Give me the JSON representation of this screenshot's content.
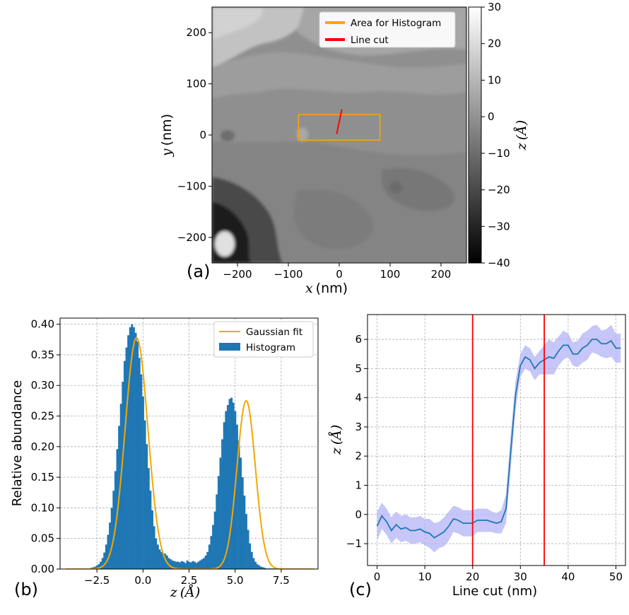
{
  "panels": {
    "a": {
      "letter": "(a)"
    },
    "b": {
      "letter": "(b)"
    },
    "c": {
      "letter": "(c)"
    }
  },
  "chart_data": [
    {
      "id": "a",
      "type": "heatmap",
      "title": "",
      "xlabel_var": "x",
      "xlabel_unit": "(nm)",
      "ylabel_var": "y",
      "ylabel_unit": "(nm)",
      "xlim": [
        -250,
        250
      ],
      "ylim": [
        -250,
        250
      ],
      "xticks": [
        -200,
        -100,
        0,
        100,
        200
      ],
      "yticks": [
        -200,
        -100,
        0,
        100,
        200
      ],
      "xtick_labels": [
        "−200",
        "−100",
        "0",
        "100",
        "200"
      ],
      "ytick_labels": [
        "−200",
        "−100",
        "0",
        "100",
        "200"
      ],
      "colorbar": {
        "label_var": "z",
        "label_unit": "(Å)",
        "range": [
          -40,
          30
        ],
        "ticks": [
          -40,
          -30,
          -20,
          -10,
          0,
          10,
          20,
          30
        ],
        "tick_labels": [
          "−40",
          "−30",
          "−20",
          "−10",
          "0",
          "10",
          "20",
          "30"
        ],
        "colormap": "gray"
      },
      "histogram_area": {
        "x": [
          -80,
          80
        ],
        "y": [
          -10,
          40
        ]
      },
      "line_cut": {
        "x": [
          -5,
          5
        ],
        "y": [
          2,
          50
        ]
      },
      "legend": {
        "position": "upper-right",
        "items": [
          {
            "label": "Area for Histogram",
            "color": "#ffa500"
          },
          {
            "label": "Line cut",
            "color": "#ff0000"
          }
        ]
      }
    },
    {
      "id": "b",
      "type": "bar",
      "title": "",
      "xlabel_var": "z",
      "xlabel_unit": "(Å)",
      "ylabel": "Relative abundance",
      "xlim": [
        -4.5,
        9.5
      ],
      "ylim": [
        0,
        0.41
      ],
      "xticks": [
        -2.5,
        0,
        2.5,
        5,
        7.5
      ],
      "xtick_labels": [
        "−2.5",
        "0.0",
        "2.5",
        "5.0",
        "7.5"
      ],
      "yticks": [
        0,
        0.05,
        0.1,
        0.15,
        0.2,
        0.25,
        0.3,
        0.35,
        0.4
      ],
      "ytick_labels": [
        "0.00",
        "0.05",
        "0.10",
        "0.15",
        "0.20",
        "0.25",
        "0.30",
        "0.35",
        "0.40"
      ],
      "grid": true,
      "legend": {
        "position": "upper-right",
        "items": [
          {
            "label": "Gaussian fit",
            "color": "#f5a700",
            "kind": "line"
          },
          {
            "label": "Histogram",
            "color": "#1f77b4",
            "kind": "patch"
          }
        ]
      },
      "histogram": {
        "bin_width": 0.1,
        "x": [
          -2.8,
          -2.7,
          -2.6,
          -2.5,
          -2.4,
          -2.3,
          -2.2,
          -2.1,
          -2.0,
          -1.9,
          -1.8,
          -1.7,
          -1.6,
          -1.5,
          -1.4,
          -1.3,
          -1.2,
          -1.1,
          -1.0,
          -0.9,
          -0.8,
          -0.7,
          -0.6,
          -0.5,
          -0.4,
          -0.3,
          -0.2,
          -0.1,
          0.0,
          0.1,
          0.2,
          0.3,
          0.4,
          0.5,
          0.6,
          0.7,
          0.8,
          0.9,
          1.0,
          1.1,
          1.2,
          1.3,
          1.4,
          1.5,
          1.6,
          1.7,
          1.8,
          1.9,
          2.0,
          2.1,
          2.2,
          2.3,
          2.4,
          2.5,
          2.6,
          2.7,
          2.8,
          2.9,
          3.0,
          3.1,
          3.2,
          3.3,
          3.4,
          3.5,
          3.6,
          3.7,
          3.8,
          3.9,
          4.0,
          4.1,
          4.2,
          4.3,
          4.4,
          4.5,
          4.6,
          4.7,
          4.8,
          4.9,
          5.0,
          5.1,
          5.2,
          5.3,
          5.4,
          5.5,
          5.6,
          5.7,
          5.8,
          5.9,
          6.0,
          6.1,
          6.2,
          6.3,
          6.4,
          6.5,
          6.6,
          6.7,
          6.8,
          6.9,
          7.0,
          7.1,
          7.2,
          7.3,
          7.4,
          7.5,
          7.6,
          7.7,
          7.8
        ],
        "values": [
          0.002,
          0.003,
          0.004,
          0.006,
          0.008,
          0.012,
          0.018,
          0.027,
          0.04,
          0.056,
          0.076,
          0.1,
          0.128,
          0.16,
          0.196,
          0.234,
          0.27,
          0.306,
          0.34,
          0.362,
          0.382,
          0.395,
          0.4,
          0.395,
          0.386,
          0.372,
          0.345,
          0.318,
          0.282,
          0.243,
          0.204,
          0.165,
          0.128,
          0.096,
          0.07,
          0.05,
          0.04,
          0.032,
          0.028,
          0.026,
          0.025,
          0.022,
          0.018,
          0.016,
          0.014,
          0.013,
          0.012,
          0.012,
          0.011,
          0.013,
          0.012,
          0.01,
          0.014,
          0.012,
          0.011,
          0.013,
          0.012,
          0.01,
          0.012,
          0.014,
          0.016,
          0.018,
          0.022,
          0.028,
          0.04,
          0.054,
          0.072,
          0.094,
          0.122,
          0.152,
          0.182,
          0.212,
          0.24,
          0.258,
          0.268,
          0.278,
          0.28,
          0.272,
          0.258,
          0.236,
          0.21,
          0.182,
          0.15,
          0.12,
          0.09,
          0.064,
          0.042,
          0.028,
          0.018,
          0.012,
          0.008,
          0.006,
          0.004,
          0.003,
          0.002,
          0.001,
          0.001,
          0.001,
          0.001,
          0.001,
          0.001,
          0.001,
          0.001,
          0.001,
          0.001,
          0.001,
          0.001
        ]
      },
      "gaussian_fit": {
        "components": [
          {
            "amplitude": 0.378,
            "mean": -0.35,
            "sigma": 0.62
          },
          {
            "amplitude": 0.275,
            "mean": 5.6,
            "sigma": 0.5
          }
        ],
        "x_range": [
          -4.2,
          9.3
        ]
      }
    },
    {
      "id": "c",
      "type": "line",
      "title": "",
      "xlabel": "Line cut (nm)",
      "ylabel_var": "z",
      "ylabel_unit": "(Å)",
      "xlim": [
        -2,
        52
      ],
      "ylim": [
        -1.75,
        6.85
      ],
      "xticks": [
        0,
        10,
        20,
        30,
        40,
        50
      ],
      "xtick_labels": [
        "0",
        "10",
        "20",
        "30",
        "40",
        "50"
      ],
      "yticks": [
        -1,
        0,
        1,
        2,
        3,
        4,
        5,
        6
      ],
      "ytick_labels": [
        "−1",
        "0",
        "1",
        "2",
        "3",
        "4",
        "5",
        "6"
      ],
      "grid": true,
      "vlines": [
        20,
        35
      ],
      "vline_color": "#ff0000",
      "series": [
        {
          "color": "#1f77b4",
          "band_color": "#b3b3f5",
          "x": [
            0,
            1,
            2,
            3,
            4,
            5,
            6,
            7,
            8,
            9,
            10,
            11,
            12,
            13,
            14,
            15,
            16,
            17,
            18,
            19,
            20,
            21,
            22,
            23,
            24,
            25,
            26,
            27,
            28,
            29,
            30,
            31,
            32,
            33,
            34,
            35,
            36,
            37,
            38,
            39,
            40,
            41,
            42,
            43,
            44,
            45,
            46,
            47,
            48,
            49,
            50,
            51
          ],
          "y": [
            -0.4,
            -0.05,
            -0.25,
            -0.55,
            -0.35,
            -0.5,
            -0.45,
            -0.55,
            -0.55,
            -0.5,
            -0.6,
            -0.65,
            -0.8,
            -0.7,
            -0.6,
            -0.4,
            -0.15,
            -0.2,
            -0.3,
            -0.3,
            -0.3,
            -0.2,
            -0.2,
            -0.2,
            -0.25,
            -0.3,
            -0.25,
            0.2,
            2.2,
            4.1,
            5.1,
            5.4,
            5.3,
            5.0,
            5.2,
            5.3,
            5.4,
            5.35,
            5.6,
            5.8,
            5.8,
            5.5,
            5.5,
            5.7,
            5.8,
            6.0,
            6.0,
            5.85,
            5.85,
            5.95,
            5.7,
            5.7
          ],
          "upper": [
            0.1,
            0.4,
            0.2,
            -0.1,
            0.1,
            -0.05,
            0.0,
            -0.1,
            -0.1,
            -0.05,
            -0.15,
            -0.15,
            -0.3,
            -0.25,
            -0.1,
            0.1,
            0.3,
            0.25,
            0.15,
            0.15,
            0.15,
            0.2,
            0.2,
            0.2,
            0.1,
            0.05,
            0.15,
            0.7,
            2.8,
            4.6,
            5.5,
            5.8,
            5.7,
            5.4,
            5.6,
            5.8,
            6.0,
            5.9,
            6.1,
            6.3,
            6.2,
            5.9,
            5.95,
            6.2,
            6.3,
            6.45,
            6.5,
            6.3,
            6.35,
            6.5,
            6.2,
            6.2
          ],
          "lower": [
            -0.9,
            -0.5,
            -0.7,
            -1.0,
            -0.8,
            -0.95,
            -0.9,
            -1.0,
            -1.0,
            -0.95,
            -1.05,
            -1.15,
            -1.3,
            -1.15,
            -1.1,
            -0.9,
            -0.6,
            -0.65,
            -0.75,
            -0.75,
            -0.75,
            -0.6,
            -0.6,
            -0.6,
            -0.6,
            -0.65,
            -0.65,
            -0.3,
            1.6,
            3.6,
            4.7,
            5.0,
            4.9,
            4.6,
            4.8,
            4.8,
            4.8,
            4.8,
            5.1,
            5.3,
            5.4,
            5.1,
            5.05,
            5.2,
            5.3,
            5.55,
            5.5,
            5.4,
            5.35,
            5.4,
            5.2,
            5.2
          ]
        }
      ]
    }
  ]
}
